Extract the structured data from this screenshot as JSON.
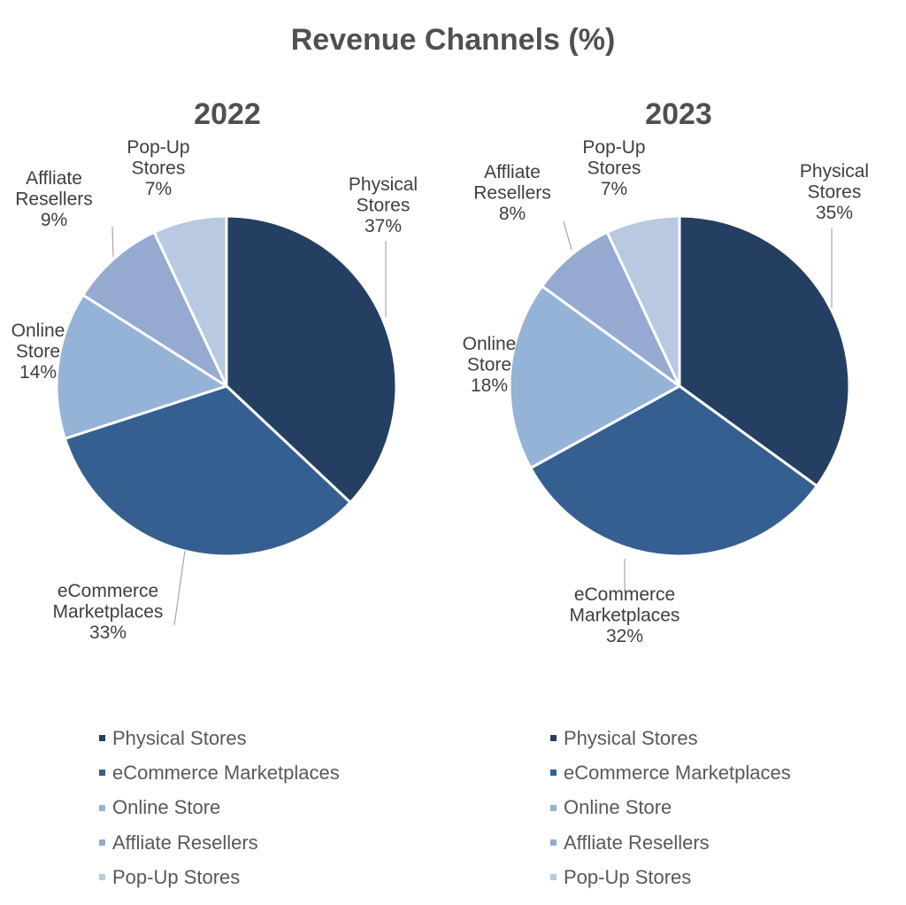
{
  "chart_data": {
    "type": "pie",
    "title": "Revenue Channels (%)",
    "colors": [
      "#243f61",
      "#365f91",
      "#95b3d7",
      "#95a9d1",
      "#b9c9e2"
    ],
    "pies": [
      {
        "name": "2022",
        "slices": [
          {
            "label": "Physical Stores",
            "value": 37,
            "label_lines": [
              "Physical",
              "Stores",
              "37%"
            ]
          },
          {
            "label": "eCommerce Marketplaces",
            "value": 33,
            "label_lines": [
              "eCommerce",
              "Marketplaces",
              "33%"
            ]
          },
          {
            "label": "Online Store",
            "value": 14,
            "label_lines": [
              "Online",
              "Store",
              "14%"
            ]
          },
          {
            "label": "Affliate Resellers",
            "value": 9,
            "label_lines": [
              "Affliate",
              "Resellers",
              "9%"
            ]
          },
          {
            "label": "Pop-Up Stores",
            "value": 7,
            "label_lines": [
              "Pop-Up",
              "Stores",
              "7%"
            ]
          }
        ]
      },
      {
        "name": "2023",
        "slices": [
          {
            "label": "Physical Stores",
            "value": 35,
            "label_lines": [
              "Physical",
              "Stores",
              "35%"
            ]
          },
          {
            "label": "eCommerce Marketplaces",
            "value": 32,
            "label_lines": [
              "eCommerce",
              "Marketplaces",
              "32%"
            ]
          },
          {
            "label": "Online Store",
            "value": 18,
            "label_lines": [
              "Online",
              "Store",
              "18%"
            ]
          },
          {
            "label": "Affliate Resellers",
            "value": 8,
            "label_lines": [
              "Affliate",
              "Resellers",
              "8%"
            ]
          },
          {
            "label": "Pop-Up Stores",
            "value": 7,
            "label_lines": [
              "Pop-Up",
              "Stores",
              "7%"
            ]
          }
        ]
      }
    ],
    "legend_position": "bottom"
  }
}
